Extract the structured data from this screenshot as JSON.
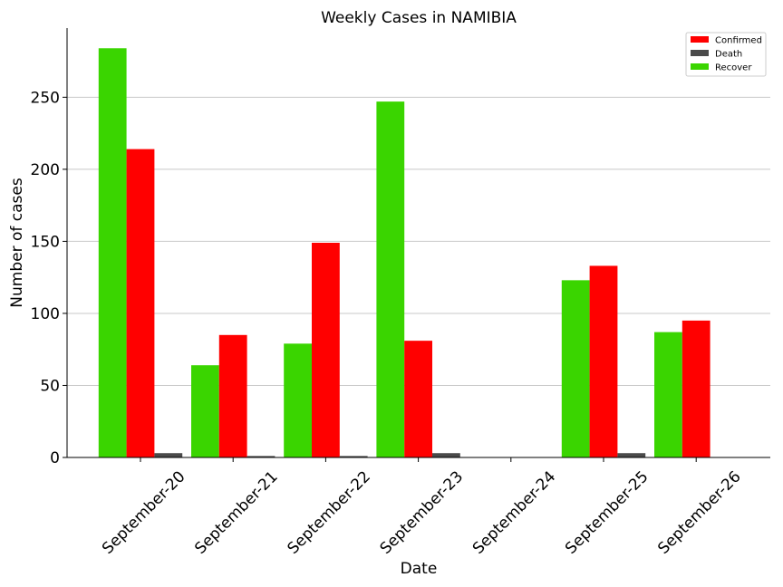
{
  "chart_data": {
    "type": "bar",
    "title": "Weekly Cases in NAMIBIA",
    "xlabel": "Date",
    "ylabel": "Number of cases",
    "categories": [
      "September-20",
      "September-21",
      "September-22",
      "September-23",
      "September-24",
      "September-25",
      "September-26"
    ],
    "series": [
      {
        "name": "Recover",
        "color": "#3ad500",
        "values": [
          284,
          64,
          79,
          247,
          0,
          123,
          87
        ]
      },
      {
        "name": "Confirmed",
        "color": "#ff0000",
        "values": [
          214,
          85,
          149,
          81,
          0,
          133,
          95
        ]
      },
      {
        "name": "Death",
        "color": "#4a4a4a",
        "values": [
          3,
          1,
          1,
          3,
          0,
          3,
          0
        ]
      }
    ],
    "legend_order": [
      "Confirmed",
      "Death",
      "Recover"
    ],
    "yticks": [
      0,
      50,
      100,
      150,
      200,
      250
    ],
    "ylim": [
      0,
      298
    ],
    "grid": "horizontal",
    "legend_position": "top-right"
  }
}
